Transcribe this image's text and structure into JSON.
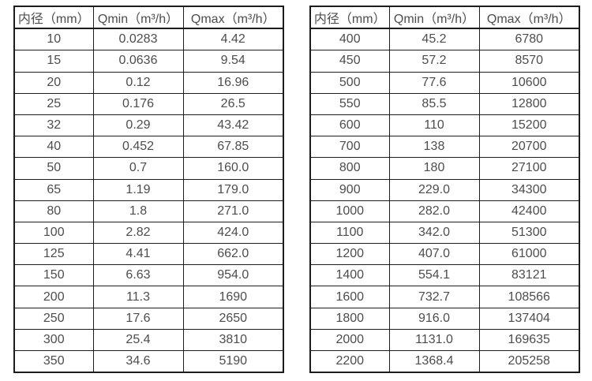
{
  "page": {
    "background_color": "#ffffff",
    "text_color": "#4d4d4d",
    "border_color": "#1c1c1c"
  },
  "tables": [
    {
      "name": "flow-rate-table-small-diameters",
      "headers": [
        "内径（mm）",
        "Qmin（m³/h）",
        "Qmax（m³/h）"
      ],
      "rows": [
        [
          "10",
          "0.0283",
          "4.42"
        ],
        [
          "15",
          "0.0636",
          "9.54"
        ],
        [
          "20",
          "0.12",
          "16.96"
        ],
        [
          "25",
          "0.176",
          "26.5"
        ],
        [
          "32",
          "0.29",
          "43.42"
        ],
        [
          "40",
          "0.452",
          "67.85"
        ],
        [
          "50",
          "0.7",
          "160.0"
        ],
        [
          "65",
          "1.19",
          "179.0"
        ],
        [
          "80",
          "1.8",
          "271.0"
        ],
        [
          "100",
          "2.82",
          "424.0"
        ],
        [
          "125",
          "4.41",
          "662.0"
        ],
        [
          "150",
          "6.63",
          "954.0"
        ],
        [
          "200",
          "11.3",
          "1690"
        ],
        [
          "250",
          "17.6",
          "2650"
        ],
        [
          "300",
          "25.4",
          "3810"
        ],
        [
          "350",
          "34.6",
          "5190"
        ]
      ]
    },
    {
      "name": "flow-rate-table-large-diameters",
      "headers": [
        "内径（mm）",
        "Qmin（m³/h）",
        "Qmax（m³/h）"
      ],
      "rows": [
        [
          "400",
          "45.2",
          "6780"
        ],
        [
          "450",
          "57.2",
          "8570"
        ],
        [
          "500",
          "77.6",
          "10600"
        ],
        [
          "550",
          "85.5",
          "12800"
        ],
        [
          "600",
          "110",
          "15200"
        ],
        [
          "700",
          "138",
          "20700"
        ],
        [
          "800",
          "180",
          "27100"
        ],
        [
          "900",
          "229.0",
          "34300"
        ],
        [
          "1000",
          "282.0",
          "42400"
        ],
        [
          "1100",
          "342.0",
          "51300"
        ],
        [
          "1200",
          "407.0",
          "61000"
        ],
        [
          "1400",
          "554.1",
          "83121"
        ],
        [
          "1600",
          "732.7",
          "108566"
        ],
        [
          "1800",
          "916.0",
          "137404"
        ],
        [
          "2000",
          "1131.0",
          "169635"
        ],
        [
          "2200",
          "1368.4",
          "205258"
        ]
      ]
    }
  ]
}
